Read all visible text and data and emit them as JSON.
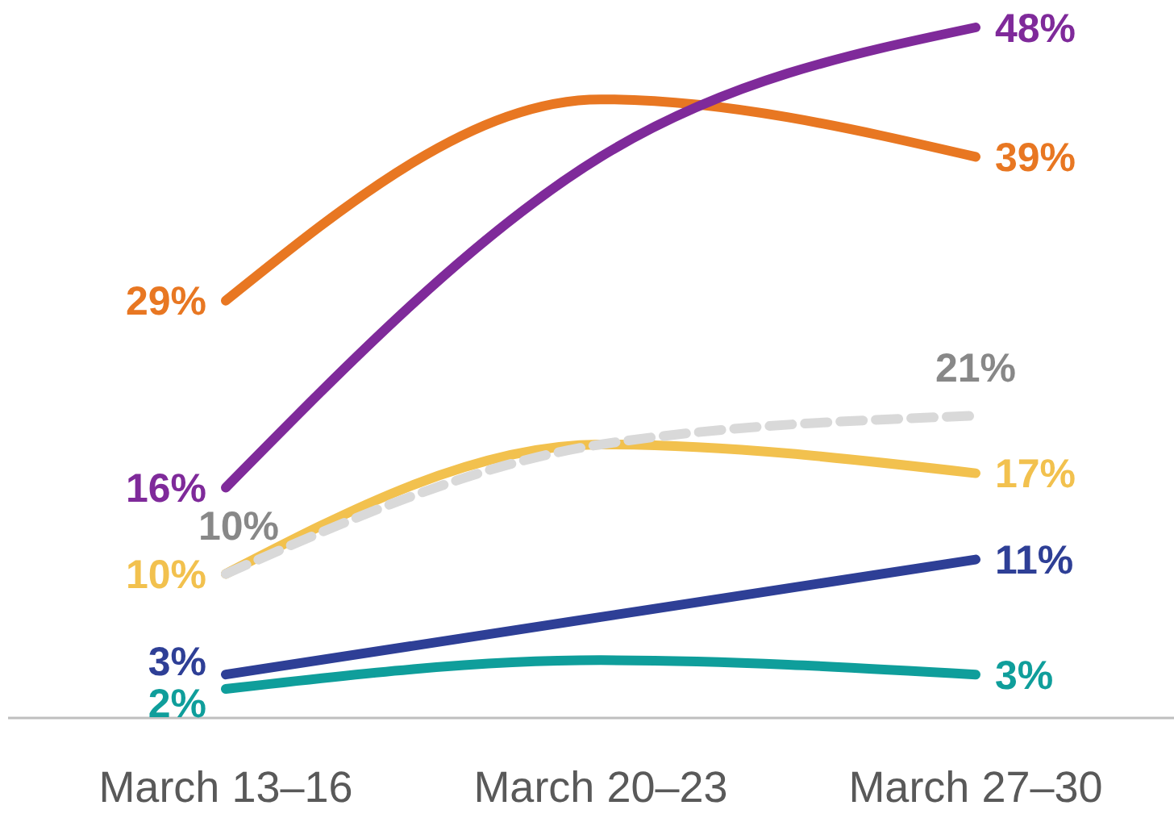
{
  "chart_data": {
    "type": "line",
    "categories": [
      "March 13–16",
      "March 20–23",
      "March 27–30"
    ],
    "tick_labels": "x",
    "marker": "none",
    "series": [
      {
        "color": "#e87722",
        "values": [
          29,
          43,
          39
        ],
        "value_labels": [
          "29%",
          null,
          "39%"
        ]
      },
      {
        "color": "#7f2a9a",
        "values": [
          16,
          39,
          48
        ],
        "value_labels": [
          "16%",
          null,
          "48%"
        ]
      },
      {
        "color": "#f2c14e",
        "values": [
          10,
          19,
          17
        ],
        "value_labels": [
          "10%",
          null,
          "17%"
        ]
      },
      {
        "color": "#d9d9d9",
        "values": [
          10,
          19,
          21
        ],
        "value_labels": [
          "10%",
          null,
          "21%"
        ],
        "line_style": "dashed"
      },
      {
        "color": "#2e3f96",
        "values": [
          3,
          7,
          11
        ],
        "value_labels": [
          "3%",
          null,
          "11%"
        ]
      },
      {
        "color": "#0f9e9b",
        "values": [
          2,
          4,
          3
        ],
        "value_labels": [
          "2%",
          null,
          "3%"
        ]
      }
    ]
  }
}
